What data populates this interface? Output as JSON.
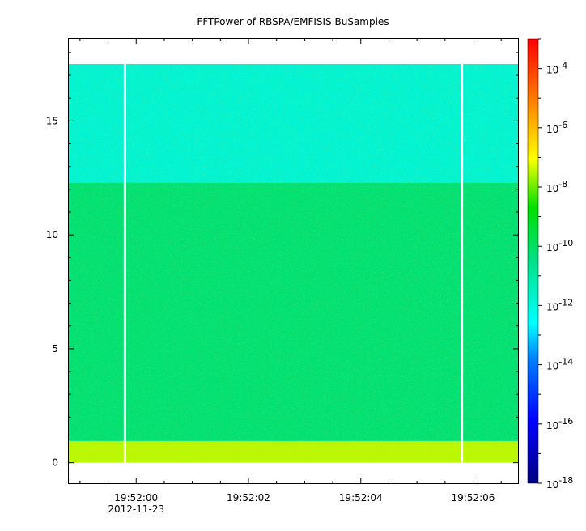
{
  "chart_data": {
    "type": "heatmap",
    "title": "FFTPower of RBSPA/EMFISIS  BuSamples",
    "xlabel": "",
    "ylabel": "",
    "x_range_seconds": [
      58.8,
      66.8
    ],
    "x_ticks": [
      {
        "label": "19:52:00",
        "sub": "2012-11-23",
        "value": 60
      },
      {
        "label": "19:52:02",
        "sub": "",
        "value": 62
      },
      {
        "label": "19:52:04",
        "sub": "",
        "value": 64
      },
      {
        "label": "19:52:06",
        "sub": "",
        "value": 66
      }
    ],
    "ylim": [
      -0.9,
      18.6
    ],
    "y_ticks": [
      0,
      5,
      10,
      15
    ],
    "data_top_y": 17.5,
    "gaps_seconds": [
      59.8,
      65.8
    ],
    "bands": [
      {
        "from": 0,
        "to": 0.95,
        "level_exp": -7.5
      },
      {
        "from": 0.95,
        "to": 12.3,
        "level_exp": -10.2
      },
      {
        "from": 12.3,
        "to": 17.5,
        "level_exp": -11.8
      }
    ],
    "colorbar": {
      "scale": "log",
      "range": [
        1e-18,
        0.001
      ],
      "tick_labels": [
        {
          "base": "10",
          "exp": "-4",
          "value": -4
        },
        {
          "base": "10",
          "exp": "-6",
          "value": -6
        },
        {
          "base": "10",
          "exp": "-8",
          "value": -8
        },
        {
          "base": "10",
          "exp": "-10",
          "value": -10
        },
        {
          "base": "10",
          "exp": "-12",
          "value": -12
        },
        {
          "base": "10",
          "exp": "-14",
          "value": -14
        },
        {
          "base": "10",
          "exp": "-16",
          "value": -16
        },
        {
          "base": "10",
          "exp": "-18",
          "value": -18
        }
      ]
    }
  }
}
